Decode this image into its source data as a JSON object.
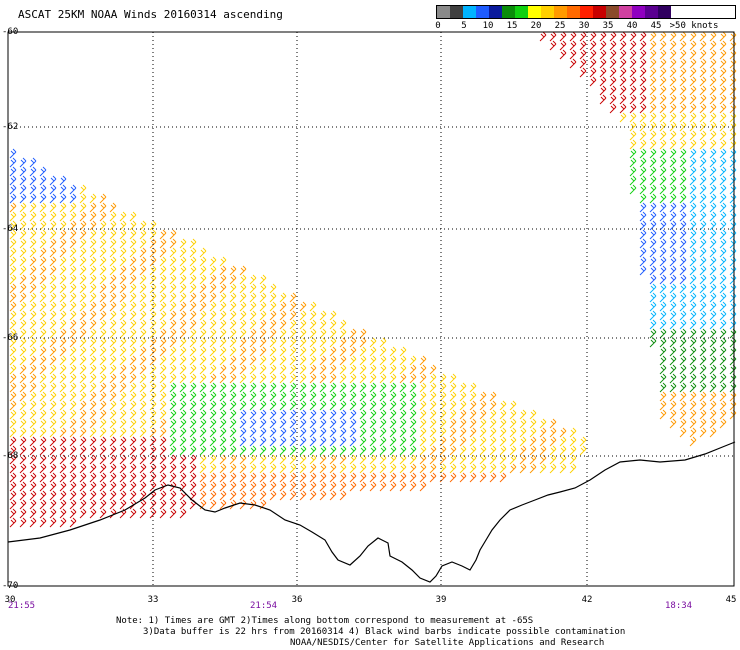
{
  "title": "ASCAT 25KM NOAA Winds 20160314 ascending",
  "legend": {
    "labels": [
      "0",
      "5",
      "10",
      "15",
      "20",
      "25",
      "30",
      "35",
      "40",
      "45",
      ">50 knots"
    ],
    "colors": [
      "#8a8a8a",
      "#404040",
      "#00b4ff",
      "#1e5cff",
      "#0a1a9c",
      "#0a8c0a",
      "#10d010",
      "#ffff00",
      "#ffd000",
      "#ff9a00",
      "#ff6a00",
      "#ff2000",
      "#c80000",
      "#8a4a2a",
      "#d040a0",
      "#9000c0",
      "#5a0090",
      "#300060"
    ]
  },
  "y_axis": {
    "ticks": [
      "-60",
      "-62",
      "-64",
      "-66",
      "-68",
      "-70"
    ]
  },
  "x_axis": {
    "ticks": [
      "30",
      "33",
      "36",
      "39",
      "42",
      "45"
    ]
  },
  "pass_times": [
    "21:55",
    "21:54",
    "18:34"
  ],
  "notes": {
    "line1": "Note: 1) Times are GMT 2)Times along bottom correspond to measurement at -65S",
    "line2": "3)Data buffer is 22 hrs from 20160314 4) Black wind barbs indicate possible contamination",
    "line3": "NOAA/NESDIS/Center for Satellite Applications and Research"
  }
}
